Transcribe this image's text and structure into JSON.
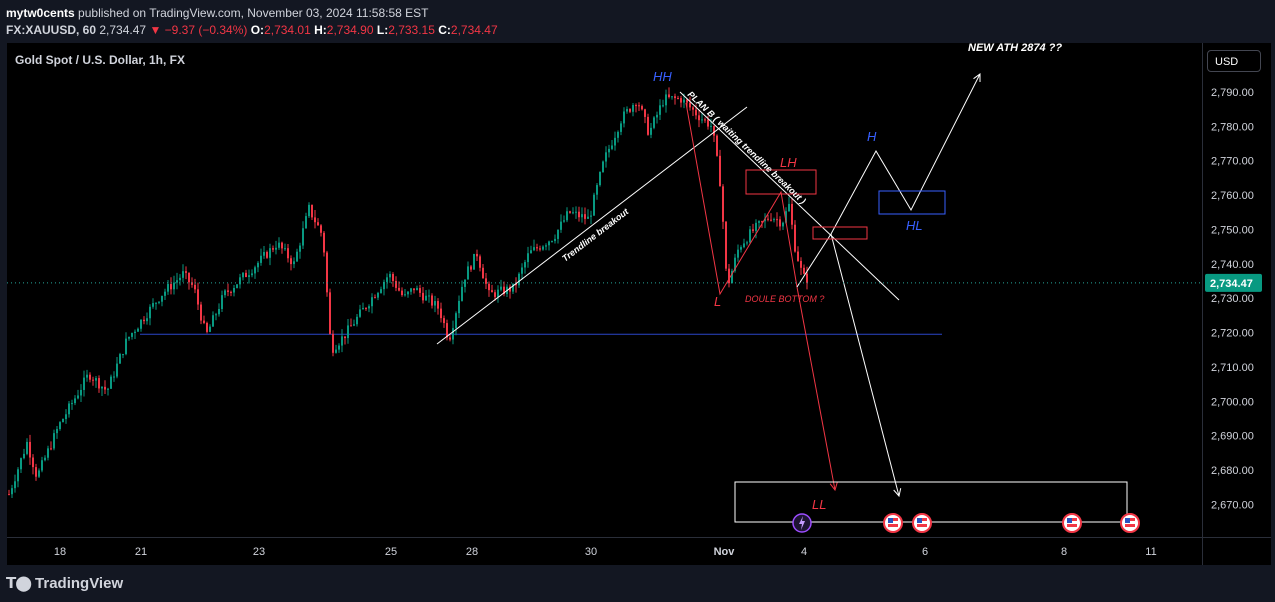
{
  "header": {
    "author": "mytw0cents",
    "published_text": "published on TradingView.com, November 03, 2024 11:58:58 EST",
    "symbol": "FX:XAUUSD, 60",
    "last": "2,734.47",
    "change": "▼ −9.37 (−0.34%)",
    "o_label": "O:",
    "o_value": "2,734.01",
    "h_label": "H:",
    "h_value": "2,734.90",
    "l_label": "L:",
    "l_value": "2,733.15",
    "c_label": "C:",
    "c_value": "2,734.47"
  },
  "symbol_title": "Gold Spot / U.S. Dollar, 1h, FX",
  "currency_button": "USD",
  "brand": "TradingView",
  "colors": {
    "up": "#089981",
    "down": "#f23645",
    "annotation_blue": "#3860ff",
    "annotation_red": "#f23645",
    "support_line": "#2b45c8"
  },
  "chart_data": {
    "type": "candlestick",
    "symbol": "FX:XAUUSD",
    "interval": "1h",
    "last_price": 2734.47,
    "y_ticks": [
      2790,
      2780,
      2770,
      2760,
      2750,
      2740,
      2730,
      2720,
      2710,
      2700,
      2690,
      2680,
      2670
    ],
    "y_tick_labels": [
      "2,790.00",
      "2,780.00",
      "2,770.00",
      "2,760.00",
      "2,750.00",
      "2,740.00",
      "2,730.00",
      "2,720.00",
      "2,710.00",
      "2,700.00",
      "2,690.00",
      "2,680.00",
      "2,670.00"
    ],
    "x_tick_labels": [
      "18",
      "21",
      "23",
      "25",
      "28",
      "30",
      "Nov",
      "4",
      "6",
      "8",
      "11"
    ],
    "support_level": 2719.5,
    "price_path": [
      [
        0,
        2673
      ],
      [
        18,
        2688
      ],
      [
        28,
        2678
      ],
      [
        50,
        2693
      ],
      [
        80,
        2708
      ],
      [
        98,
        2703
      ],
      [
        118,
        2718
      ],
      [
        152,
        2731
      ],
      [
        174,
        2737
      ],
      [
        185,
        2733
      ],
      [
        197,
        2719
      ],
      [
        215,
        2731
      ],
      [
        248,
        2740
      ],
      [
        268,
        2746
      ],
      [
        285,
        2740
      ],
      [
        300,
        2756
      ],
      [
        314,
        2748
      ],
      [
        322,
        2715
      ],
      [
        335,
        2719
      ],
      [
        355,
        2727
      ],
      [
        380,
        2737
      ],
      [
        395,
        2730
      ],
      [
        405,
        2733
      ],
      [
        430,
        2727
      ],
      [
        440,
        2718
      ],
      [
        455,
        2736
      ],
      [
        468,
        2743
      ],
      [
        480,
        2731
      ],
      [
        505,
        2733
      ],
      [
        520,
        2743
      ],
      [
        545,
        2748
      ],
      [
        560,
        2755
      ],
      [
        580,
        2753
      ],
      [
        595,
        2770
      ],
      [
        612,
        2782
      ],
      [
        628,
        2788
      ],
      [
        640,
        2778
      ],
      [
        655,
        2788
      ],
      [
        672,
        2788
      ],
      [
        690,
        2783
      ],
      [
        703,
        2780
      ],
      [
        712,
        2762
      ],
      [
        718,
        2733
      ],
      [
        730,
        2745
      ],
      [
        745,
        2750
      ],
      [
        762,
        2754
      ],
      [
        773,
        2752
      ],
      [
        780,
        2757
      ],
      [
        786,
        2745
      ],
      [
        793,
        2737
      ],
      [
        798,
        2734.5
      ]
    ],
    "annotations": [
      {
        "label": "HH",
        "color": "blue"
      },
      {
        "label": "L",
        "color": "red"
      },
      {
        "label": "LH",
        "color": "red"
      },
      {
        "label": "DOULE BOTTOM ?",
        "color": "red"
      },
      {
        "label": "H",
        "color": "blue"
      },
      {
        "label": "HL",
        "color": "blue"
      },
      {
        "label": "LL",
        "color": "red"
      },
      {
        "label": "NEW ATH 2874  ??",
        "color": "white"
      },
      {
        "label": "Trendline breakout",
        "color": "white"
      },
      {
        "label": "PLAN B ( waiting trendline breakout )",
        "color": "white"
      }
    ]
  }
}
